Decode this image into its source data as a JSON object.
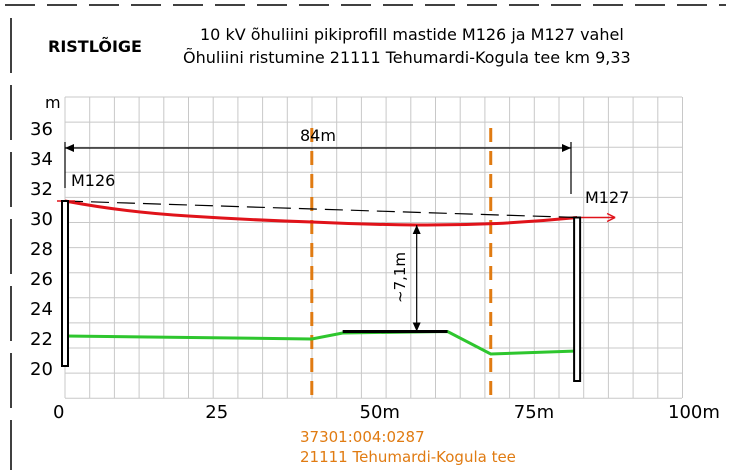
{
  "header": {
    "section_label": "RISTLÕIGE",
    "title_line1": "10 kV õhuliini pikiprofill mastide M126 ja M127 vahel",
    "title_line2": "Õhuliini ristumine 21111 Tehumardi-Kogula tee km 9,33"
  },
  "axis": {
    "y_unit": "m",
    "y_ticks": [
      "36",
      "34",
      "32",
      "30",
      "28",
      "26",
      "24",
      "22",
      "20"
    ],
    "x_ticks": [
      "0",
      "25",
      "50m",
      "75m",
      "100m"
    ]
  },
  "labels": {
    "span": "84m",
    "mast_left": "M126",
    "mast_right": "M127",
    "clearance": "~7,1m"
  },
  "parcel": {
    "id": "37301:004:0287",
    "road": "21111 Tehumardi-Kogula tee"
  },
  "chart_data": {
    "type": "line",
    "xlabel": "",
    "ylabel": "m",
    "xlim": [
      0,
      100
    ],
    "ylim": [
      19,
      37
    ],
    "grid": true,
    "series": [
      {
        "values_xy": [
          [
            0,
            31.2
          ],
          [
            20,
            30.2
          ],
          [
            40,
            29.8
          ],
          [
            57,
            29.6
          ],
          [
            70,
            29.7
          ],
          [
            83,
            30.1
          ]
        ]
      },
      {
        "values_xy": [
          [
            0,
            22.2
          ],
          [
            40,
            22.0
          ],
          [
            45,
            22.4
          ],
          [
            62,
            22.5
          ],
          [
            69,
            21.0
          ],
          [
            83,
            21.2
          ]
        ]
      }
    ],
    "masts": [
      {
        "name": "M126",
        "x": 0,
        "y_bottom": 20.2,
        "y_top": 31.2
      },
      {
        "name": "M127",
        "x": 83,
        "y_bottom": 19.2,
        "y_top": 30.1
      }
    ],
    "road_boundaries_x": [
      40,
      69
    ],
    "span_m": 84,
    "clearance_m": 7.1,
    "clearance_x": 57,
    "colors": {
      "conductor": "#e0131a",
      "ground": "#2ec62e",
      "road_boundary": "#e07b12",
      "grid": "#c8c8c8"
    }
  }
}
